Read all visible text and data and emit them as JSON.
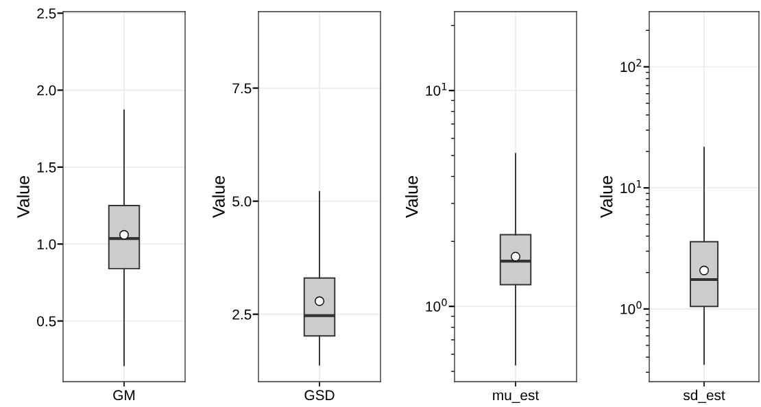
{
  "chart_data": [
    {
      "type": "box",
      "categories": [
        "GM"
      ],
      "ylabel": "Value",
      "ylim": [
        0.106,
        2.51
      ],
      "yticks": [
        0.5,
        {
          "value": 1,
          "label": "1.0"
        },
        1.5,
        {
          "value": 2,
          "label": "2.0"
        },
        2.5
      ],
      "grid": true,
      "boxes": [
        {
          "low": 0.21,
          "q1": 0.84,
          "median": 1.036,
          "q3": 1.25,
          "high": 1.87,
          "mean": 1.06
        }
      ]
    },
    {
      "type": "box",
      "categories": [
        "GSD"
      ],
      "ylabel": "Value",
      "ylim": [
        1.01,
        9.19
      ],
      "yticks": [
        2.5,
        {
          "value": 5,
          "label": "5.0"
        },
        7.5
      ],
      "grid": true,
      "boxes": [
        {
          "low": 1.38,
          "q1": 2.02,
          "median": 2.47,
          "q3": 3.3,
          "high": 5.21,
          "mean": 2.79
        }
      ]
    },
    {
      "type": "box",
      "categories": [
        "mu_est"
      ],
      "ylabel": "Value",
      "log": "y",
      "ylim": [
        0.448,
        23.2
      ],
      "grid": true,
      "yticks": [
        {
          "value": 0.5,
          "label": null
        },
        {
          "value": 0.6,
          "label": null
        },
        {
          "value": 0.7,
          "label": null
        },
        {
          "value": 0.8,
          "label": null
        },
        {
          "value": 0.9,
          "label": null
        },
        {
          "value": 1,
          "label": "10$^{0}$"
        },
        {
          "value": 2,
          "label": null
        },
        {
          "value": 3,
          "label": null
        },
        {
          "value": 4,
          "label": null
        },
        {
          "value": 5,
          "label": null
        },
        {
          "value": 6,
          "label": null
        },
        {
          "value": 7,
          "label": null
        },
        {
          "value": 8,
          "label": null
        },
        {
          "value": 9,
          "label": null
        },
        {
          "value": 10,
          "label": "10$^{1}$"
        },
        {
          "value": 20,
          "label": null
        }
      ],
      "boxes": [
        {
          "low": 0.537,
          "q1": 1.26,
          "median": 1.62,
          "q3": 2.15,
          "high": 5.1,
          "mean": 1.7
        }
      ]
    },
    {
      "type": "box",
      "categories": [
        "sd_est"
      ],
      "ylabel": "Value",
      "log": "y",
      "ylim": [
        0.251,
        285.6
      ],
      "grid": true,
      "yticks": [
        {
          "value": 0.3,
          "label": null
        },
        {
          "value": 0.4,
          "label": null
        },
        {
          "value": 0.5,
          "label": null
        },
        {
          "value": 0.6,
          "label": null
        },
        {
          "value": 0.7,
          "label": null
        },
        {
          "value": 0.8,
          "label": null
        },
        {
          "value": 0.9,
          "label": null
        },
        {
          "value": 1,
          "label": "10$^{0}$"
        },
        {
          "value": 2,
          "label": null
        },
        {
          "value": 3,
          "label": null
        },
        {
          "value": 4,
          "label": null
        },
        {
          "value": 5,
          "label": null
        },
        {
          "value": 6,
          "label": null
        },
        {
          "value": 7,
          "label": null
        },
        {
          "value": 8,
          "label": null
        },
        {
          "value": 9,
          "label": null
        },
        {
          "value": 10,
          "label": "10$^{1}$"
        },
        {
          "value": 20,
          "label": null
        },
        {
          "value": 30,
          "label": null
        },
        {
          "value": 40,
          "label": null
        },
        {
          "value": 50,
          "label": null
        },
        {
          "value": 60,
          "label": null
        },
        {
          "value": 70,
          "label": null
        },
        {
          "value": 80,
          "label": null
        },
        {
          "value": 90,
          "label": null
        },
        {
          "value": 100,
          "label": "10$^{2}$"
        },
        {
          "value": 200,
          "label": null
        }
      ],
      "boxes": [
        {
          "low": 0.35,
          "q1": 1.05,
          "median": 1.75,
          "q3": 3.59,
          "high": 21.6,
          "mean": 2.08
        }
      ]
    }
  ]
}
